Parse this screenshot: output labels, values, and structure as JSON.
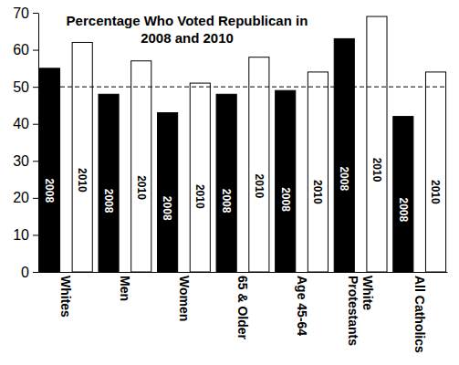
{
  "chart_data": {
    "type": "bar",
    "title": "Percentage Who Voted Republican in 2008 and 2010",
    "categories": [
      "Whites",
      "Men",
      "Women",
      "65 & Older",
      "Age 45-64",
      "White Protestants",
      "All Catholics"
    ],
    "series": [
      {
        "name": "2008",
        "color": "#000000",
        "values": [
          55,
          48,
          43,
          48,
          49,
          63,
          42
        ]
      },
      {
        "name": "2010",
        "color": "#ffffff",
        "values": [
          62,
          57,
          51,
          58,
          54,
          69,
          54
        ]
      }
    ],
    "ylim": [
      0,
      70
    ],
    "yticks": [
      0,
      10,
      20,
      30,
      40,
      50,
      60,
      70
    ],
    "reference_line": 50,
    "grid": false
  }
}
